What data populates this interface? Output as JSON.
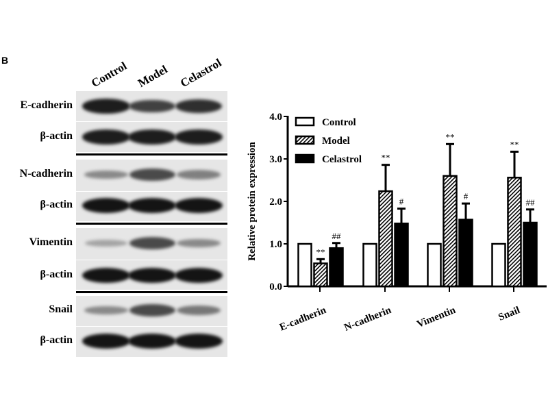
{
  "panel_letter": "B",
  "blot": {
    "lanes": [
      "Control",
      "Model",
      "Celastrol"
    ],
    "rows": [
      {
        "label": "E-cadherin",
        "intensity": [
          0.95,
          0.75,
          0.85
        ]
      },
      {
        "label": "β-actin",
        "intensity": [
          0.95,
          0.95,
          0.95
        ]
      },
      {
        "label": "N-cadherin",
        "intensity": [
          0.35,
          0.7,
          0.4
        ]
      },
      {
        "label": "β-actin",
        "intensity": [
          1,
          1,
          1
        ]
      },
      {
        "label": "Vimentin",
        "intensity": [
          0.2,
          0.7,
          0.35
        ]
      },
      {
        "label": "β-actin",
        "intensity": [
          1,
          1,
          1
        ]
      },
      {
        "label": "Snail",
        "intensity": [
          0.35,
          0.7,
          0.45
        ]
      },
      {
        "label": "β-actin",
        "intensity": [
          1,
          1,
          1
        ]
      }
    ]
  },
  "chart_data": {
    "type": "bar",
    "ylabel": "Relative protein expression",
    "xlabel": "",
    "ylim": [
      0,
      4
    ],
    "yticks": [
      "0.0",
      "1.0",
      "2.0",
      "3.0",
      "4.0"
    ],
    "categories": [
      "E-cadherin",
      "N-cadherin",
      "Vimentin",
      "Snail"
    ],
    "legend_position": "top-left",
    "series": [
      {
        "name": "Control",
        "fill": "white",
        "values": [
          1.0,
          1.0,
          1.0,
          1.0
        ],
        "error_upper": [
          1.0,
          1.0,
          1.0,
          1.0
        ],
        "annotations": [
          "",
          "",
          "",
          ""
        ]
      },
      {
        "name": "Model",
        "fill": "hatched",
        "values": [
          0.54,
          2.24,
          2.6,
          2.56
        ],
        "error_upper": [
          0.64,
          2.86,
          3.35,
          3.17
        ],
        "annotations": [
          "**",
          "**",
          "**",
          "**"
        ]
      },
      {
        "name": "Celastrol",
        "fill": "black",
        "values": [
          0.9,
          1.48,
          1.57,
          1.5
        ],
        "error_upper": [
          1.02,
          1.83,
          1.95,
          1.81
        ],
        "annotations": [
          "##",
          "#",
          "#",
          "##"
        ]
      }
    ]
  }
}
